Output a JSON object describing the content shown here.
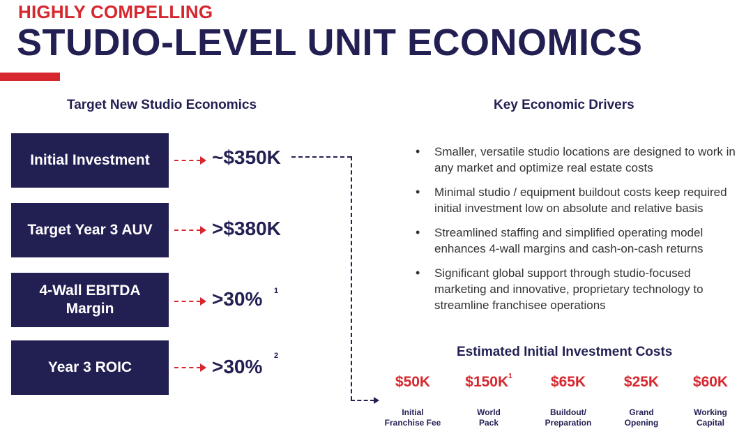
{
  "header": {
    "eyebrow": "HIGHLY COMPELLING",
    "title": "STUDIO-LEVEL UNIT ECONOMICS"
  },
  "left": {
    "heading": "Target New Studio Economics",
    "metrics": [
      {
        "label_lines": [
          "Initial Investment"
        ],
        "value": "~$350K",
        "footnote": ""
      },
      {
        "label_lines": [
          "Target Year 3 AUV"
        ],
        "value": ">$380K",
        "footnote": ""
      },
      {
        "label_lines": [
          "4-Wall EBITDA",
          "Margin"
        ],
        "value": ">30%",
        "footnote": "1"
      },
      {
        "label_lines": [
          "Year 3 ROIC"
        ],
        "value": ">30%",
        "footnote": "2"
      }
    ]
  },
  "right": {
    "heading": "Key Economic Drivers",
    "drivers": [
      "Smaller, versatile studio locations are designed to work in any market and optimize real estate costs",
      "Minimal studio / equipment buildout costs keep required initial investment low on absolute and relative basis",
      "Streamlined staffing and simplified operating model enhances 4-wall margins and cash-on-cash returns",
      "Significant global support through studio-focused marketing and innovative, proprietary technology to streamline franchisee operations"
    ],
    "costs_heading": "Estimated Initial Investment Costs",
    "costs": [
      {
        "value": "$50K",
        "footnote": "",
        "label_lines": [
          "Initial",
          "Franchise Fee"
        ]
      },
      {
        "value": "$150K",
        "footnote": "1",
        "label_lines": [
          "World",
          "Pack"
        ]
      },
      {
        "value": "$65K",
        "footnote": "",
        "label_lines": [
          "Buildout/",
          "Preparation"
        ]
      },
      {
        "value": "$25K",
        "footnote": "",
        "label_lines": [
          "Grand",
          "Opening"
        ]
      },
      {
        "value": "$60K",
        "footnote": "",
        "label_lines": [
          "Working",
          "Capital"
        ]
      }
    ]
  },
  "colors": {
    "navy": "#221f52",
    "red": "#d6272e"
  }
}
